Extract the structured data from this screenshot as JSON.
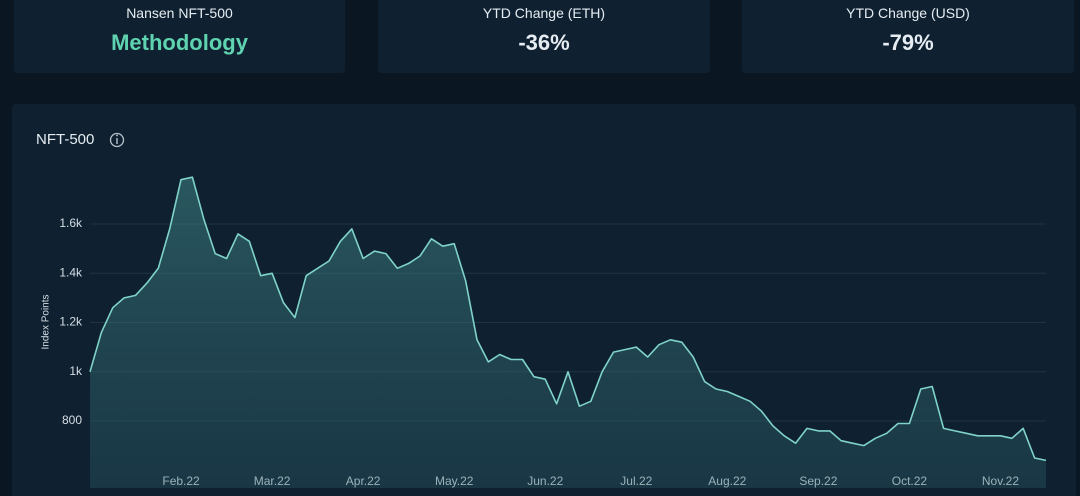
{
  "cards": [
    {
      "label": "Nansen NFT-500",
      "value": "Methodology"
    },
    {
      "label": "YTD Change (ETH)",
      "value": "-36%"
    },
    {
      "label": "YTD Change (USD)",
      "value": "-79%"
    }
  ],
  "chart_data": {
    "type": "area",
    "title": "NFT-500",
    "ylabel": "Index Points",
    "color": "#7fd3c9",
    "categories": [
      null,
      null,
      null,
      null,
      null,
      null,
      null,
      null,
      "Feb.22",
      null,
      null,
      null,
      null,
      null,
      null,
      null,
      "Mar.22",
      null,
      null,
      null,
      null,
      null,
      null,
      null,
      "Apr.22",
      null,
      null,
      null,
      null,
      null,
      null,
      null,
      "May.22",
      null,
      null,
      null,
      null,
      null,
      null,
      null,
      "Jun.22",
      null,
      null,
      null,
      null,
      null,
      null,
      null,
      "Jul.22",
      null,
      null,
      null,
      null,
      null,
      null,
      null,
      "Aug.22",
      null,
      null,
      null,
      null,
      null,
      null,
      null,
      "Sep.22",
      null,
      null,
      null,
      null,
      null,
      null,
      null,
      "Oct.22",
      null,
      null,
      null,
      null,
      null,
      null,
      null,
      "Nov.22",
      null,
      null,
      null,
      null
    ],
    "values": [
      1000,
      1160,
      1260,
      1300,
      1310,
      1360,
      1420,
      1580,
      1780,
      1790,
      1620,
      1480,
      1460,
      1560,
      1530,
      1390,
      1400,
      1280,
      1220,
      1390,
      1420,
      1450,
      1530,
      1580,
      1460,
      1490,
      1480,
      1420,
      1440,
      1470,
      1540,
      1510,
      1520,
      1370,
      1130,
      1040,
      1070,
      1050,
      1050,
      980,
      970,
      870,
      1000,
      860,
      880,
      1000,
      1080,
      1090,
      1100,
      1060,
      1110,
      1130,
      1120,
      1060,
      960,
      930,
      920,
      900,
      880,
      840,
      780,
      740,
      710,
      770,
      760,
      760,
      720,
      710,
      700,
      730,
      750,
      790,
      790,
      930,
      940,
      770,
      760,
      750,
      740,
      740,
      740,
      730,
      770,
      650,
      640
    ],
    "ylim": [
      528,
      1860
    ],
    "yticks": [
      800,
      {
        "value": 1000,
        "label": "1k"
      },
      {
        "value": 1200,
        "label": "1.2k"
      },
      {
        "value": 1400,
        "label": "1.4k"
      },
      {
        "value": 1600,
        "label": "1.6k"
      }
    ],
    "grid": true
  }
}
